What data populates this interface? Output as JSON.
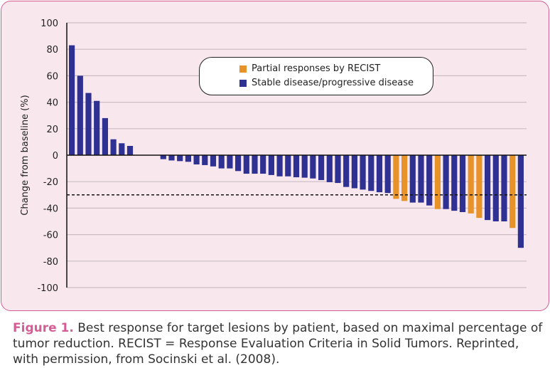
{
  "chart_data": {
    "type": "bar",
    "title": "",
    "xlabel": "",
    "ylabel": "Change from baseline (%)",
    "ylim": [
      -100,
      100
    ],
    "yticks": [
      100,
      80,
      60,
      40,
      20,
      0,
      -20,
      -40,
      -60,
      -80,
      -100
    ],
    "grid": true,
    "reference_line": {
      "y": -30,
      "style": "dashed"
    },
    "legend_placement": "top-center",
    "series": [
      {
        "name": "Partial responses by RECIST",
        "color": "#e8922a"
      },
      {
        "name": "Stable disease/progressive disease",
        "color": "#2e3192"
      }
    ],
    "values": [
      83,
      60,
      47,
      41,
      28,
      12,
      9,
      7,
      0,
      0,
      0,
      -3,
      -4,
      -4.5,
      -5,
      -7,
      -7.5,
      -8.5,
      -10,
      -10,
      -12,
      -14,
      -14,
      -14,
      -15,
      -16,
      -16,
      -16.7,
      -17,
      -17.6,
      -18.8,
      -20.4,
      -21,
      -24,
      -25,
      -26,
      -27,
      -28,
      -28.6,
      -33,
      -34.6,
      -35.8,
      -35.8,
      -38,
      -40.7,
      -40.7,
      -42,
      -43,
      -44,
      -47.4,
      -49,
      -50,
      -50,
      -55,
      -70
    ],
    "response": [
      "SD",
      "SD",
      "SD",
      "SD",
      "SD",
      "SD",
      "SD",
      "SD",
      "SD",
      "SD",
      "SD",
      "SD",
      "SD",
      "SD",
      "SD",
      "SD",
      "SD",
      "SD",
      "SD",
      "SD",
      "SD",
      "SD",
      "SD",
      "SD",
      "SD",
      "SD",
      "SD",
      "SD",
      "SD",
      "SD",
      "SD",
      "SD",
      "SD",
      "SD",
      "SD",
      "SD",
      "SD",
      "SD",
      "SD",
      "PR",
      "PR",
      "SD",
      "SD",
      "SD",
      "PR",
      "SD",
      "SD",
      "SD",
      "PR",
      "PR",
      "SD",
      "SD",
      "SD",
      "PR",
      "SD"
    ]
  },
  "caption": {
    "label": "Figure 1.",
    "text": " Best response for target lesions by patient, based on maximal percentage of tumor reduction. RECIST = Response Evaluation Criteria in Solid Tumors. Reprinted, with permission, from Socinski et al. (2008)."
  }
}
